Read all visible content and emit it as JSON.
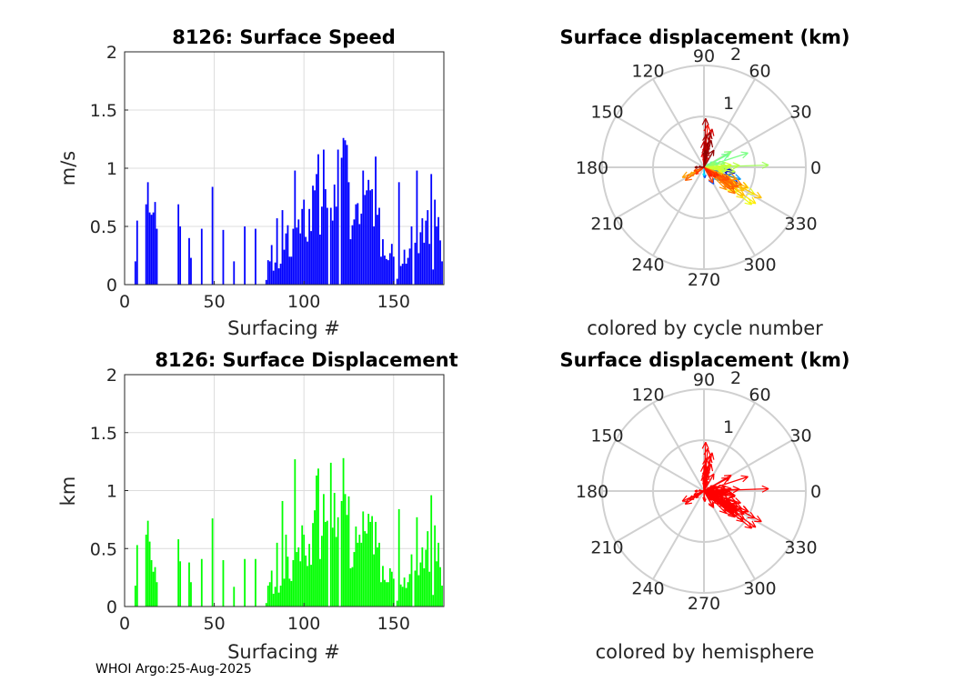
{
  "colors": {
    "speed_bar": "#0000ff",
    "disp_bar": "#00ff00",
    "hemisphere_arrow": "#ff0000",
    "grid": "#dcdcdc",
    "polar_grid": "#d0d0d0"
  },
  "footer": "WHOI Argo:25-Aug-2025",
  "chart_data": [
    {
      "type": "bar",
      "id": "speed",
      "title": "8126: Surface Speed",
      "xlabel": "Surfacing #",
      "ylabel": "m/s",
      "xlim": [
        0,
        178
      ],
      "ylim": [
        0,
        2
      ],
      "xticks": [
        "0",
        "50",
        "100",
        "150"
      ],
      "yticks": [
        "0",
        "0.5",
        "1",
        "1.5",
        "2"
      ],
      "grid": true,
      "x": [
        6,
        7,
        12,
        13,
        14,
        15,
        16,
        17,
        18,
        30,
        31,
        36,
        37,
        43,
        49,
        55,
        61,
        67,
        73,
        79,
        80,
        81,
        82,
        83,
        84,
        85,
        86,
        87,
        88,
        89,
        90,
        91,
        92,
        93,
        94,
        95,
        96,
        97,
        98,
        99,
        100,
        101,
        102,
        103,
        104,
        105,
        106,
        107,
        108,
        109,
        110,
        111,
        112,
        113,
        115,
        116,
        117,
        118,
        119,
        121,
        122,
        123,
        124,
        125,
        126,
        127,
        128,
        129,
        130,
        131,
        132,
        133,
        134,
        135,
        136,
        137,
        138,
        139,
        140,
        141,
        142,
        143,
        144,
        145,
        146,
        147,
        148,
        149,
        150,
        152,
        153,
        154,
        155,
        156,
        157,
        158,
        159,
        160,
        162,
        163,
        164,
        165,
        166,
        167,
        168,
        169,
        170,
        171,
        172,
        173,
        174,
        175,
        176,
        177
      ],
      "values": [
        0.2,
        0.55,
        0.69,
        0.88,
        0.62,
        0.6,
        0.62,
        0.71,
        0.48,
        0.69,
        0.5,
        0.4,
        0.23,
        0.48,
        0.84,
        0.47,
        0.2,
        0.5,
        0.48,
        0.04,
        0.21,
        0.2,
        0.34,
        0.12,
        0.19,
        0.57,
        0.14,
        0.18,
        0.64,
        0.3,
        0.44,
        0.51,
        0.24,
        0.24,
        0.48,
        0.98,
        0.49,
        0.56,
        0.44,
        0.65,
        0.73,
        0.41,
        0.37,
        0.65,
        0.46,
        0.85,
        0.81,
        0.95,
        1.12,
        0.43,
        0.67,
        1.16,
        0.82,
        0.66,
        0.66,
        0.55,
        0.86,
        0.67,
        1.16,
        1.09,
        1.26,
        1.24,
        1.2,
        0.88,
        0.39,
        0.51,
        0.56,
        0.69,
        0.7,
        0.52,
        0.61,
        0.98,
        0.77,
        0.81,
        0.9,
        0.81,
        0.82,
        0.5,
        1.1,
        0.6,
        0.66,
        0.24,
        0.39,
        0.25,
        0.22,
        0.21,
        0.27,
        0.35,
        0.24,
        0.05,
        0.88,
        0.16,
        0.18,
        0.3,
        0.18,
        0.23,
        0.31,
        0.5,
        0.36,
        0.98,
        0.27,
        0.45,
        0.57,
        0.36,
        0.55,
        0.64,
        0.35,
        0.95,
        0.13,
        0.73,
        0.5,
        0.58,
        0.38,
        0.2
      ]
    },
    {
      "type": "bar",
      "id": "displacement",
      "title": "8126: Surface Displacement",
      "xlabel": "Surfacing #",
      "ylabel": "km",
      "xlim": [
        0,
        178
      ],
      "ylim": [
        0,
        2
      ],
      "xticks": [
        "0",
        "50",
        "100",
        "150"
      ],
      "yticks": [
        "0",
        "0.5",
        "1",
        "1.5",
        "2"
      ],
      "grid": true,
      "values": [
        0.18,
        0.53,
        0.62,
        0.74,
        0.56,
        0.4,
        0.3,
        0.34,
        0.21,
        0.58,
        0.39,
        0.38,
        0.21,
        0.41,
        0.76,
        0.4,
        0.17,
        0.41,
        0.41,
        0.03,
        0.18,
        0.21,
        0.31,
        0.11,
        0.17,
        0.55,
        0.12,
        0.18,
        0.91,
        0.24,
        0.62,
        0.43,
        0.24,
        0.22,
        0.4,
        1.27,
        0.47,
        0.51,
        0.39,
        0.7,
        0.62,
        0.44,
        0.35,
        0.54,
        0.36,
        0.72,
        0.83,
        1.13,
        1.19,
        0.41,
        0.61,
        0.97,
        0.73,
        0.74,
        1.24,
        0.68,
        0.98,
        0.6,
        0.77,
        0.91,
        1.28,
        0.97,
        0.79,
        0.95,
        0.33,
        0.34,
        0.47,
        0.69,
        0.55,
        0.62,
        0.55,
        0.82,
        0.65,
        0.63,
        0.8,
        0.73,
        0.78,
        0.45,
        0.73,
        0.51,
        0.55,
        0.21,
        0.35,
        0.23,
        0.21,
        0.21,
        0.33,
        0.3,
        0.24,
        0.05,
        0.84,
        0.19,
        0.17,
        0.25,
        0.16,
        0.21,
        0.28,
        0.45,
        0.31,
        0.77,
        0.27,
        0.38,
        0.51,
        0.33,
        0.49,
        0.65,
        0.3,
        0.96,
        0.1,
        0.7,
        0.39,
        0.55,
        0.34,
        0.18
      ]
    },
    {
      "type": "polar-compass",
      "id": "polar_cycle",
      "title": "Surface displacement (km)",
      "caption": "colored by cycle number",
      "rlim": [
        0,
        2
      ],
      "rticks": [
        "1",
        "2"
      ],
      "theta_ticks": [
        "0",
        "30",
        "60",
        "90",
        "120",
        "150",
        "180",
        "210",
        "240",
        "270",
        "300",
        "330"
      ],
      "color_mode": "cycle",
      "angles_deg": [
        -15,
        -20,
        -10,
        -25,
        -5,
        -30,
        -15,
        -20,
        -10,
        -25,
        -35,
        -60,
        -85,
        -20,
        -18,
        -40,
        -90,
        -30,
        -10,
        20,
        25,
        30,
        15,
        10,
        20,
        28,
        35,
        22,
        18,
        25,
        30,
        12,
        20,
        15,
        5,
        2,
        -3,
        0,
        -5,
        3,
        -8,
        -10,
        -2,
        5,
        -12,
        -30,
        -35,
        -28,
        -38,
        -20,
        -32,
        -25,
        -40,
        -30,
        -35,
        -30,
        -38,
        -25,
        -33,
        -30,
        -28,
        -35,
        -40,
        -25,
        -30,
        210,
        205,
        -20,
        -30,
        -45,
        -35,
        -25,
        -38,
        -28,
        -40,
        -32,
        -30,
        215,
        -36,
        -30,
        -26,
        200,
        -60,
        -50,
        -45,
        220,
        -30,
        -40,
        -50,
        80,
        85,
        90,
        75,
        82,
        88,
        70,
        95,
        85,
        80,
        78,
        85,
        88,
        90,
        75,
        82,
        86,
        84,
        88,
        170,
        80,
        60,
        75,
        85,
        180
      ]
    },
    {
      "type": "polar-compass",
      "id": "polar_hemisphere",
      "title": "Surface displacement (km)",
      "caption": "colored by hemisphere",
      "rlim": [
        0,
        2
      ],
      "rticks": [
        "1",
        "2"
      ],
      "theta_ticks": [
        "0",
        "30",
        "60",
        "90",
        "120",
        "150",
        "180",
        "210",
        "240",
        "270",
        "300",
        "330"
      ],
      "color_mode": "hemisphere"
    }
  ]
}
